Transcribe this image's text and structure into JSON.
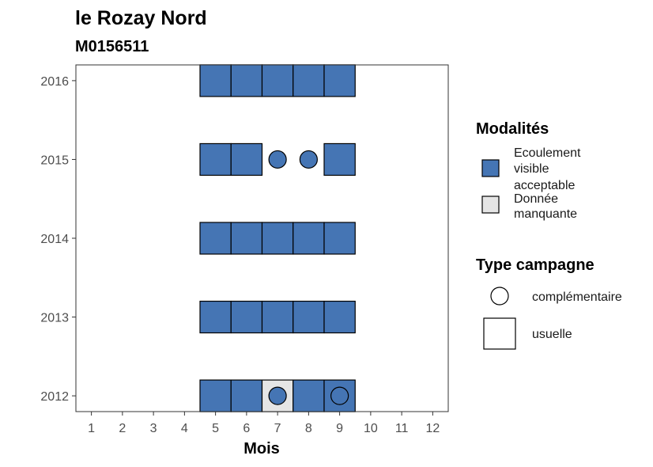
{
  "chart_data": {
    "type": "heatmap",
    "title": "le Rozay Nord",
    "subtitle": "M0156511",
    "xlabel": "Mois",
    "ylabel": "",
    "x_ticks": [
      1,
      2,
      3,
      4,
      5,
      6,
      7,
      8,
      9,
      10,
      11,
      12
    ],
    "y_ticks": [
      2012,
      2013,
      2014,
      2015,
      2016
    ],
    "xlim": [
      0.5,
      12.5
    ],
    "ylim": [
      2011.8,
      2016.2
    ],
    "grid": false,
    "legend_position": "right",
    "modalites": [
      {
        "key": "ecoulement",
        "label_lines": [
          "Ecoulement",
          "visible",
          "acceptable"
        ],
        "color": "#4575b4"
      },
      {
        "key": "manquante",
        "label_lines": [
          "Donnée",
          "manquante"
        ],
        "color": "#e5e5e5"
      }
    ],
    "campagne_types": [
      {
        "key": "complementaire",
        "label": "complémentaire",
        "shape": "circle"
      },
      {
        "key": "usuelle",
        "label": "usuelle",
        "shape": "square"
      }
    ],
    "legend_titles": {
      "modalites": "Modalités",
      "campagne": "Type campagne"
    },
    "cells": [
      {
        "year": 2016,
        "month": 5,
        "modalite": "ecoulement",
        "campagne": "usuelle"
      },
      {
        "year": 2016,
        "month": 6,
        "modalite": "ecoulement",
        "campagne": "usuelle"
      },
      {
        "year": 2016,
        "month": 7,
        "modalite": "ecoulement",
        "campagne": "usuelle"
      },
      {
        "year": 2016,
        "month": 8,
        "modalite": "ecoulement",
        "campagne": "usuelle"
      },
      {
        "year": 2016,
        "month": 9,
        "modalite": "ecoulement",
        "campagne": "usuelle"
      },
      {
        "year": 2015,
        "month": 5,
        "modalite": "ecoulement",
        "campagne": "usuelle"
      },
      {
        "year": 2015,
        "month": 6,
        "modalite": "ecoulement",
        "campagne": "usuelle"
      },
      {
        "year": 2015,
        "month": 7,
        "modalite": "ecoulement",
        "campagne": "complementaire"
      },
      {
        "year": 2015,
        "month": 8,
        "modalite": "ecoulement",
        "campagne": "complementaire"
      },
      {
        "year": 2015,
        "month": 9,
        "modalite": "ecoulement",
        "campagne": "usuelle"
      },
      {
        "year": 2014,
        "month": 5,
        "modalite": "ecoulement",
        "campagne": "usuelle"
      },
      {
        "year": 2014,
        "month": 6,
        "modalite": "ecoulement",
        "campagne": "usuelle"
      },
      {
        "year": 2014,
        "month": 7,
        "modalite": "ecoulement",
        "campagne": "usuelle"
      },
      {
        "year": 2014,
        "month": 8,
        "modalite": "ecoulement",
        "campagne": "usuelle"
      },
      {
        "year": 2014,
        "month": 9,
        "modalite": "ecoulement",
        "campagne": "usuelle"
      },
      {
        "year": 2013,
        "month": 5,
        "modalite": "ecoulement",
        "campagne": "usuelle"
      },
      {
        "year": 2013,
        "month": 6,
        "modalite": "ecoulement",
        "campagne": "usuelle"
      },
      {
        "year": 2013,
        "month": 7,
        "modalite": "ecoulement",
        "campagne": "usuelle"
      },
      {
        "year": 2013,
        "month": 8,
        "modalite": "ecoulement",
        "campagne": "usuelle"
      },
      {
        "year": 2013,
        "month": 9,
        "modalite": "ecoulement",
        "campagne": "usuelle"
      },
      {
        "year": 2012,
        "month": 5,
        "modalite": "ecoulement",
        "campagne": "usuelle"
      },
      {
        "year": 2012,
        "month": 6,
        "modalite": "ecoulement",
        "campagne": "usuelle"
      },
      {
        "year": 2012,
        "month": 7,
        "modalite": "manquante",
        "campagne": "usuelle"
      },
      {
        "year": 2012,
        "month": 7,
        "modalite": "ecoulement",
        "campagne": "complementaire"
      },
      {
        "year": 2012,
        "month": 8,
        "modalite": "ecoulement",
        "campagne": "usuelle"
      },
      {
        "year": 2012,
        "month": 9,
        "modalite": "ecoulement",
        "campagne": "usuelle"
      },
      {
        "year": 2012,
        "month": 9,
        "modalite": "ecoulement",
        "campagne": "complementaire"
      }
    ]
  }
}
